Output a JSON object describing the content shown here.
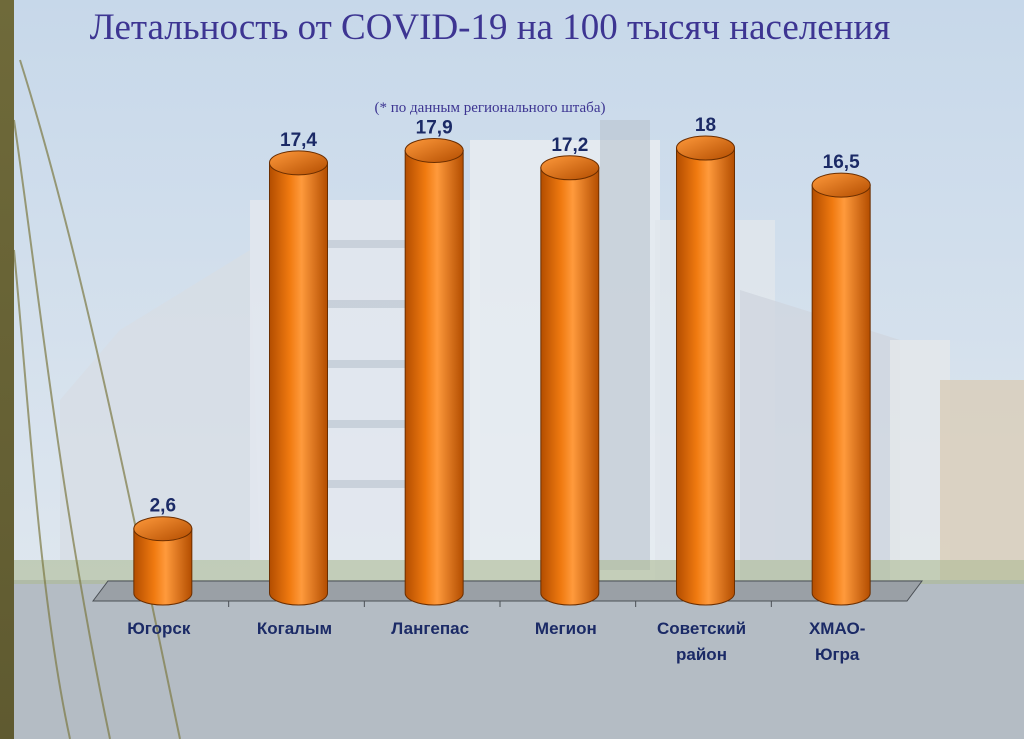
{
  "title": "Летальность от COVID-19 на 100 тысяч населения",
  "subtitle": "(* по данным регионального штаба)",
  "colors": {
    "bar": "#f07a10",
    "bar_dark": "#b34d00",
    "title": "#3d3592",
    "labels": "#1b2a66"
  },
  "chart_data": {
    "type": "bar",
    "title": "Летальность от COVID-19 на 100 тысяч населения",
    "subtitle": "(* по данным регионального штаба)",
    "categories": [
      [
        "Югорск"
      ],
      [
        "Когалым"
      ],
      [
        "Лангепас"
      ],
      [
        "Мегион"
      ],
      [
        "Советский",
        "район"
      ],
      [
        "ХМАО-",
        "Югра"
      ]
    ],
    "values": [
      2.6,
      17.4,
      17.9,
      17.2,
      18,
      16.5
    ],
    "value_labels": [
      "2,6",
      "17,4",
      "17,9",
      "17,2",
      "18",
      "16,5"
    ],
    "ylim": [
      0,
      18
    ],
    "grid": false,
    "legend": "none",
    "style": "3d-cylinder"
  }
}
